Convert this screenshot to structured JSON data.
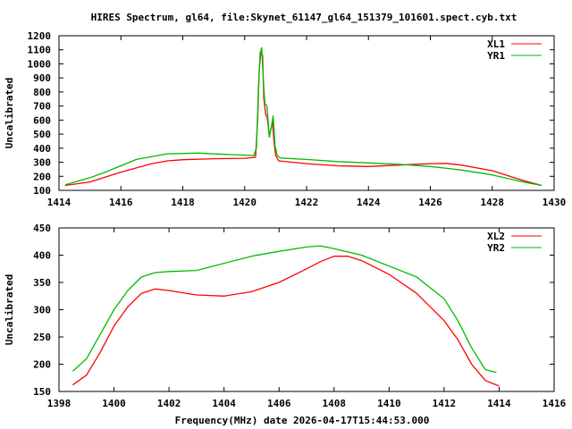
{
  "title": "HIRES Spectrum, gl64, file:Skynet_61147_gl64_151379_101601.spect.cyb.txt",
  "xlabel": "Frequency(MHz) date 2026-04-17T15:44:53.000",
  "chart_data": [
    {
      "type": "line",
      "ylabel": "Uncalibrated",
      "xlim": [
        1414,
        1430
      ],
      "ylim": [
        100,
        1200
      ],
      "xticks": [
        1414,
        1416,
        1418,
        1420,
        1422,
        1424,
        1426,
        1428,
        1430
      ],
      "yticks": [
        100,
        200,
        300,
        400,
        500,
        600,
        700,
        800,
        900,
        1000,
        1100,
        1200
      ],
      "legend_position": "top-right",
      "series": [
        {
          "name": "XL1",
          "color": "#ff0000",
          "x": [
            1414.2,
            1415,
            1416,
            1417,
            1417.5,
            1418,
            1419,
            1420,
            1420.35,
            1420.42,
            1420.47,
            1420.52,
            1420.58,
            1420.62,
            1420.68,
            1420.73,
            1420.8,
            1420.85,
            1420.9,
            1420.95,
            1421.0,
            1421.1,
            1422,
            1423,
            1424,
            1425,
            1426,
            1426.5,
            1427,
            1428,
            1429,
            1429.6
          ],
          "y": [
            135,
            160,
            230,
            290,
            310,
            318,
            325,
            328,
            335,
            600,
            950,
            1080,
            1060,
            750,
            640,
            620,
            480,
            540,
            590,
            450,
            350,
            310,
            290,
            275,
            270,
            280,
            290,
            292,
            280,
            240,
            170,
            135
          ]
        },
        {
          "name": "YR1",
          "color": "#00bb00",
          "x": [
            1414.2,
            1415,
            1415.5,
            1416.5,
            1417.5,
            1418.5,
            1419.5,
            1420.3,
            1420.38,
            1420.45,
            1420.5,
            1420.55,
            1420.6,
            1420.65,
            1420.72,
            1420.8,
            1420.87,
            1420.92,
            1420.98,
            1421.05,
            1421.15,
            1422,
            1423,
            1424,
            1425,
            1426,
            1427,
            1428,
            1429,
            1429.6
          ],
          "y": [
            140,
            190,
            230,
            320,
            360,
            365,
            355,
            348,
            400,
            850,
            1080,
            1115,
            900,
            720,
            700,
            480,
            560,
            630,
            420,
            350,
            330,
            320,
            305,
            295,
            285,
            270,
            245,
            210,
            160,
            135
          ]
        }
      ]
    },
    {
      "type": "line",
      "ylabel": "Uncalibrated",
      "xlim": [
        1398,
        1416
      ],
      "ylim": [
        150,
        450
      ],
      "xticks": [
        1398,
        1400,
        1402,
        1404,
        1406,
        1408,
        1410,
        1412,
        1414,
        1416
      ],
      "yticks": [
        150,
        200,
        250,
        300,
        350,
        400,
        450
      ],
      "legend_position": "top-right",
      "series": [
        {
          "name": "XL2",
          "color": "#ff0000",
          "x": [
            1398.5,
            1399,
            1399.5,
            1400,
            1400.5,
            1401,
            1401.5,
            1402,
            1403,
            1404,
            1405,
            1406,
            1407,
            1407.5,
            1408,
            1408.5,
            1409,
            1410,
            1411,
            1412,
            1412.5,
            1413,
            1413.5,
            1414
          ],
          "y": [
            162,
            180,
            222,
            270,
            305,
            330,
            338,
            335,
            327,
            325,
            333,
            350,
            375,
            388,
            398,
            398,
            390,
            365,
            330,
            280,
            245,
            200,
            170,
            160
          ]
        },
        {
          "name": "YR2",
          "color": "#00bb00",
          "x": [
            1398.5,
            1399,
            1399.5,
            1400,
            1400.5,
            1401,
            1401.5,
            1402,
            1403,
            1404,
            1405,
            1406,
            1407,
            1407.5,
            1408,
            1409,
            1410,
            1411,
            1412,
            1412.5,
            1413,
            1413.5,
            1413.9
          ],
          "y": [
            187,
            210,
            255,
            300,
            335,
            360,
            368,
            370,
            372,
            385,
            398,
            407,
            415,
            417,
            412,
            400,
            380,
            360,
            320,
            280,
            230,
            190,
            185
          ]
        }
      ]
    }
  ]
}
